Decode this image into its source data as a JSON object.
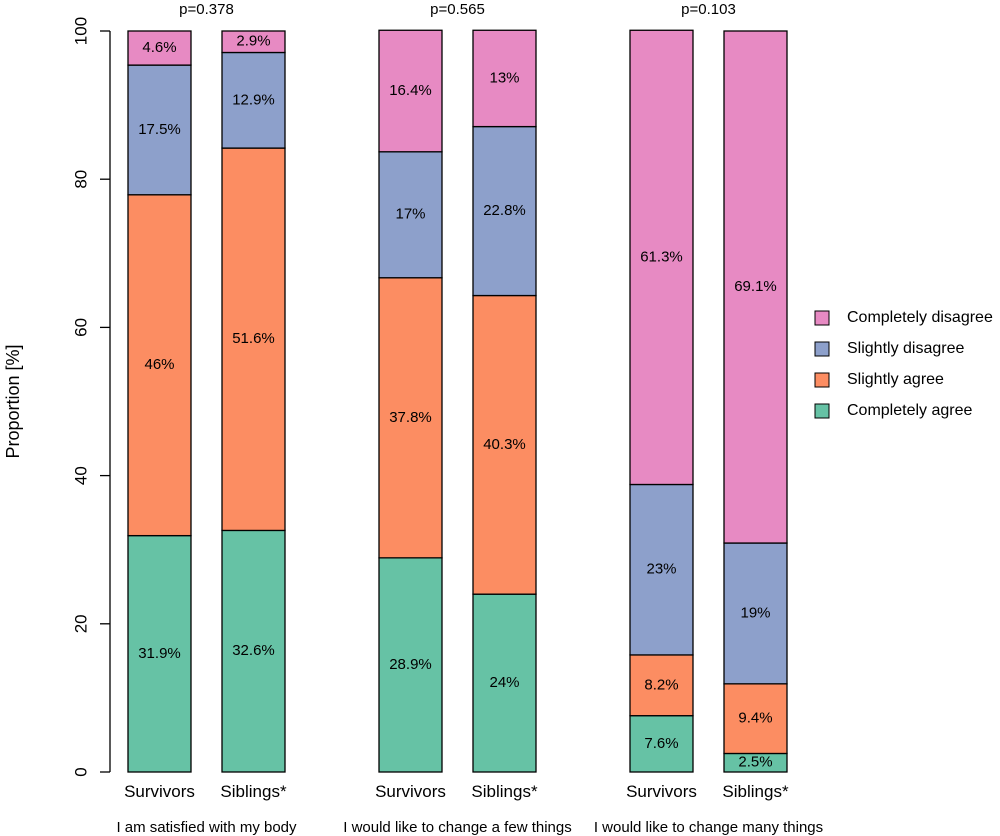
{
  "chart_data": {
    "type": "bar",
    "stacked": true,
    "ylabel": "Proportion [%]",
    "ylim": [
      0,
      100
    ],
    "yticks": [
      "0",
      "20",
      "40",
      "60",
      "80",
      "100"
    ],
    "grid": false,
    "legend_position": "right",
    "groups": [
      {
        "label": "I am satisfied with my body",
        "pvalue": "p=0.378",
        "bars": [
          {
            "label": "Survivors",
            "values": [
              31.9,
              46.0,
              17.5,
              4.6
            ],
            "value_labels": [
              "31.9%",
              "46%",
              "17.5%",
              "4.6%"
            ]
          },
          {
            "label": "Siblings*",
            "values": [
              32.6,
              51.6,
              12.9,
              2.9
            ],
            "value_labels": [
              "32.6%",
              "51.6%",
              "12.9%",
              "2.9%"
            ]
          }
        ]
      },
      {
        "label": "I would like to change a few things",
        "pvalue": "p=0.565",
        "bars": [
          {
            "label": "Survivors",
            "values": [
              28.9,
              37.8,
              17.0,
              16.4
            ],
            "value_labels": [
              "28.9%",
              "37.8%",
              "17%",
              "16.4%"
            ]
          },
          {
            "label": "Siblings*",
            "values": [
              24.0,
              40.3,
              22.8,
              13.0
            ],
            "value_labels": [
              "24%",
              "40.3%",
              "22.8%",
              "13%"
            ]
          }
        ]
      },
      {
        "label": "I would like to change many things",
        "pvalue": "p=0.103",
        "bars": [
          {
            "label": "Survivors",
            "values": [
              7.6,
              8.2,
              23.0,
              61.3
            ],
            "value_labels": [
              "7.6%",
              "8.2%",
              "23%",
              "61.3%"
            ]
          },
          {
            "label": "Siblings*",
            "values": [
              2.5,
              9.4,
              19.0,
              69.1
            ],
            "value_labels": [
              "2.5%",
              "9.4%",
              "19%",
              "69.1%"
            ]
          }
        ]
      }
    ],
    "series": [
      {
        "name": "Completely agree",
        "color": "#66c2a5"
      },
      {
        "name": "Slightly agree",
        "color": "#fc8d62"
      },
      {
        "name": "Slightly disagree",
        "color": "#8da0cb"
      },
      {
        "name": "Completely disagree",
        "color": "#e78ac3"
      }
    ],
    "legend_order": [
      "Completely disagree",
      "Slightly disagree",
      "Slightly agree",
      "Completely agree"
    ]
  }
}
